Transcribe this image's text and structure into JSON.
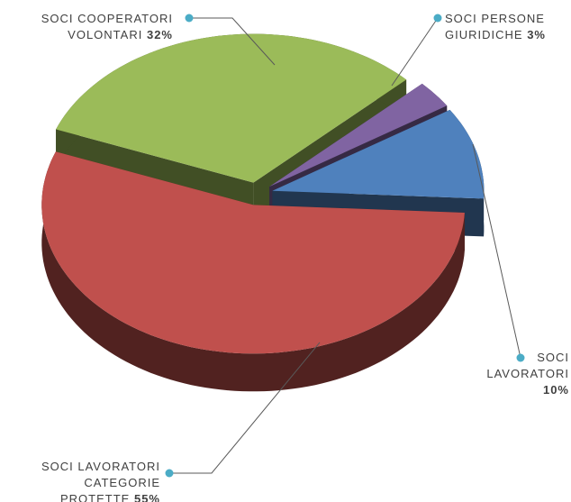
{
  "chart_data": {
    "type": "pie",
    "categories": [
      "SOCI COOPERATORI VOLONTARI",
      "SOCI PERSONE GIURIDICHE",
      "SOCI LAVORATORI",
      "SOCI LAVORATORI CATEGORIE PROTETTE"
    ],
    "values": [
      32,
      3,
      10,
      55
    ],
    "value_labels": [
      "32%",
      "3%",
      "10%",
      "55%"
    ],
    "colors": [
      "#9bbb59",
      "#8064a2",
      "#4f81bd",
      "#c0504d"
    ]
  }
}
